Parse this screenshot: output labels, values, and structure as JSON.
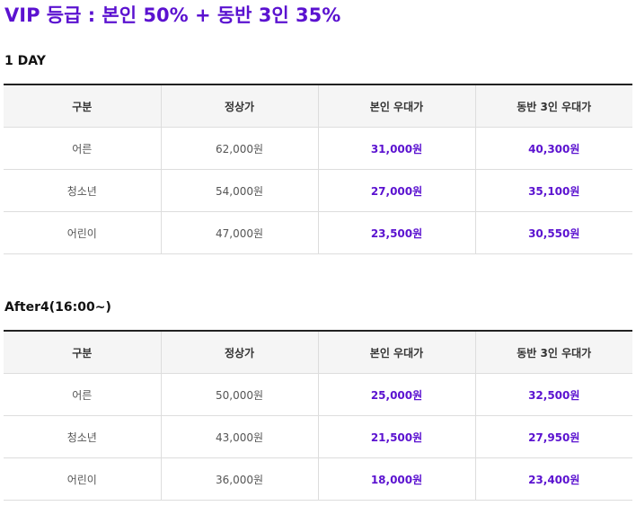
{
  "title": "VIP 등급 : 본인 50% + 동반 3인 35%",
  "accent_color": "#5b12d0",
  "sections": [
    {
      "heading": "1 DAY",
      "columns": [
        "구분",
        "정상가",
        "본인 우대가",
        "동반 3인 우대가"
      ],
      "rows": [
        {
          "category": "어른",
          "regular": "62,000원",
          "self": "31,000원",
          "companion": "40,300원"
        },
        {
          "category": "청소년",
          "regular": "54,000원",
          "self": "27,000원",
          "companion": "35,100원"
        },
        {
          "category": "어린이",
          "regular": "47,000원",
          "self": "23,500원",
          "companion": "30,550원"
        }
      ]
    },
    {
      "heading": "After4(16:00~)",
      "columns": [
        "구분",
        "정상가",
        "본인 우대가",
        "동반 3인 우대가"
      ],
      "rows": [
        {
          "category": "어른",
          "regular": "50,000원",
          "self": "25,000원",
          "companion": "32,500원"
        },
        {
          "category": "청소년",
          "regular": "43,000원",
          "self": "21,500원",
          "companion": "27,950원"
        },
        {
          "category": "어린이",
          "regular": "36,000원",
          "self": "18,000원",
          "companion": "23,400원"
        }
      ]
    }
  ]
}
